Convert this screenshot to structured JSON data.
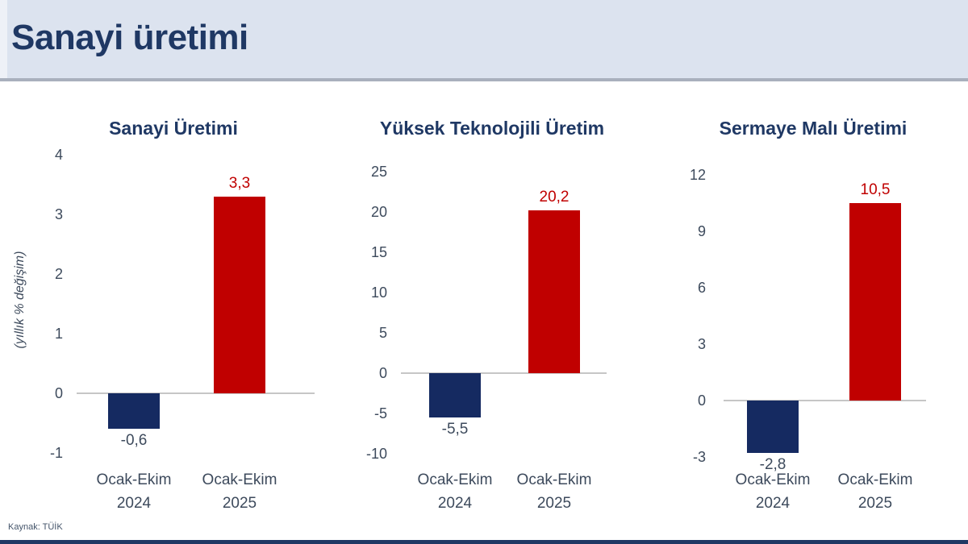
{
  "header": {
    "title": "Sanayi üretimi"
  },
  "source": "Kaynak: TÜİK",
  "colors": {
    "navy_bar": "#152A61",
    "red_bar": "#C00000",
    "header_bg": "#DCE3EF",
    "title_navy": "#1F3864",
    "axis_text": "#3D4A5C"
  },
  "chart_data": [
    {
      "type": "bar",
      "title": "Sanayi Üretimi",
      "ylabel": "(yıllık % değişim)",
      "categories": [
        [
          "Ocak-Ekim",
          "2024"
        ],
        [
          "Ocak-Ekim",
          "2025"
        ]
      ],
      "values": [
        -0.6,
        3.3
      ],
      "value_labels": [
        "-0,6",
        "3,3"
      ],
      "yticks": [
        4,
        3,
        2,
        1,
        0,
        -1
      ],
      "ylim": [
        -1,
        4
      ],
      "bar_colors": [
        "#152A61",
        "#C00000"
      ],
      "grid": false,
      "legend": false
    },
    {
      "type": "bar",
      "title": "Yüksek Teknolojili Üretim",
      "ylabel": "",
      "categories": [
        [
          "Ocak-Ekim",
          "2024"
        ],
        [
          "Ocak-Ekim",
          "2025"
        ]
      ],
      "values": [
        -5.5,
        20.2
      ],
      "value_labels": [
        "-5,5",
        "20,2"
      ],
      "yticks": [
        25,
        20,
        15,
        10,
        5,
        0,
        -5,
        -10
      ],
      "ylim": [
        -10,
        25
      ],
      "bar_colors": [
        "#152A61",
        "#C00000"
      ],
      "grid": false,
      "legend": false
    },
    {
      "type": "bar",
      "title": "Sermaye Malı Üretimi",
      "ylabel": "",
      "categories": [
        [
          "Ocak-Ekim",
          "2024"
        ],
        [
          "Ocak-Ekim",
          "2025"
        ]
      ],
      "values": [
        -2.8,
        10.5
      ],
      "value_labels": [
        "-2,8",
        "10,5"
      ],
      "yticks": [
        12,
        9,
        6,
        3,
        0,
        -3
      ],
      "ylim": [
        -3,
        12
      ],
      "bar_colors": [
        "#152A61",
        "#C00000"
      ],
      "grid": false,
      "legend": false
    }
  ]
}
